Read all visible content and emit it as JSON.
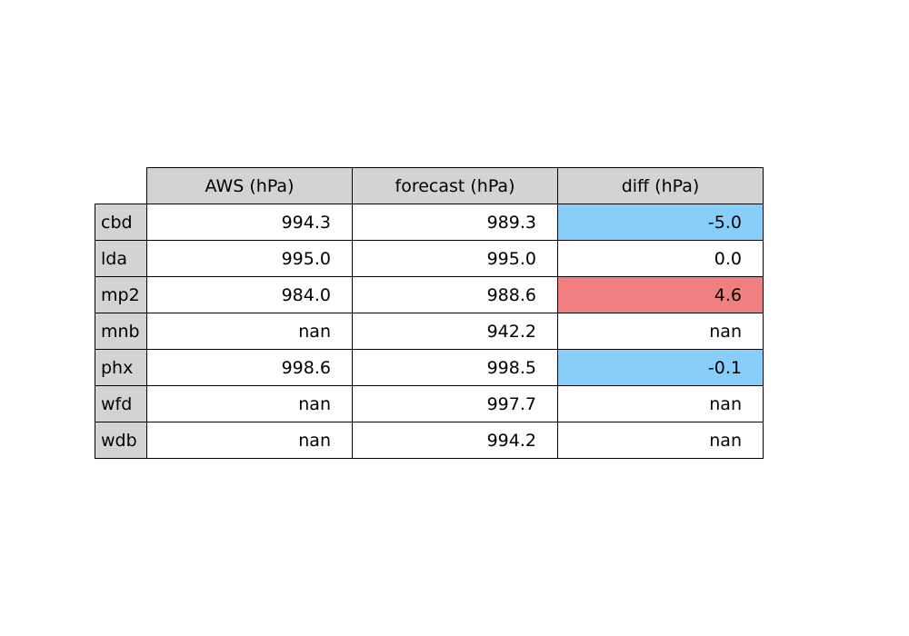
{
  "chart_data": {
    "type": "table",
    "columns": [
      "AWS (hPa)",
      "forecast (hPa)",
      "diff (hPa)"
    ],
    "rows": [
      {
        "label": "cbd",
        "values": [
          "994.3",
          "989.3",
          "-5.0"
        ],
        "diff_color": "#87cefa"
      },
      {
        "label": "lda",
        "values": [
          "995.0",
          "995.0",
          "0.0"
        ],
        "diff_color": "#ffffff"
      },
      {
        "label": "mp2",
        "values": [
          "984.0",
          "988.6",
          "4.6"
        ],
        "diff_color": "#f08080"
      },
      {
        "label": "mnb",
        "values": [
          "nan",
          "942.2",
          "nan"
        ],
        "diff_color": "#ffffff"
      },
      {
        "label": "phx",
        "values": [
          "998.6",
          "998.5",
          "-0.1"
        ],
        "diff_color": "#87cefa"
      },
      {
        "label": "wfd",
        "values": [
          "nan",
          "997.7",
          "nan"
        ],
        "diff_color": "#ffffff"
      },
      {
        "label": "wdb",
        "values": [
          "nan",
          "994.2",
          "nan"
        ],
        "diff_color": "#ffffff"
      }
    ],
    "header_color": "#d3d3d3",
    "negative_diff_color": "#87cefa",
    "positive_diff_color": "#f08080"
  }
}
